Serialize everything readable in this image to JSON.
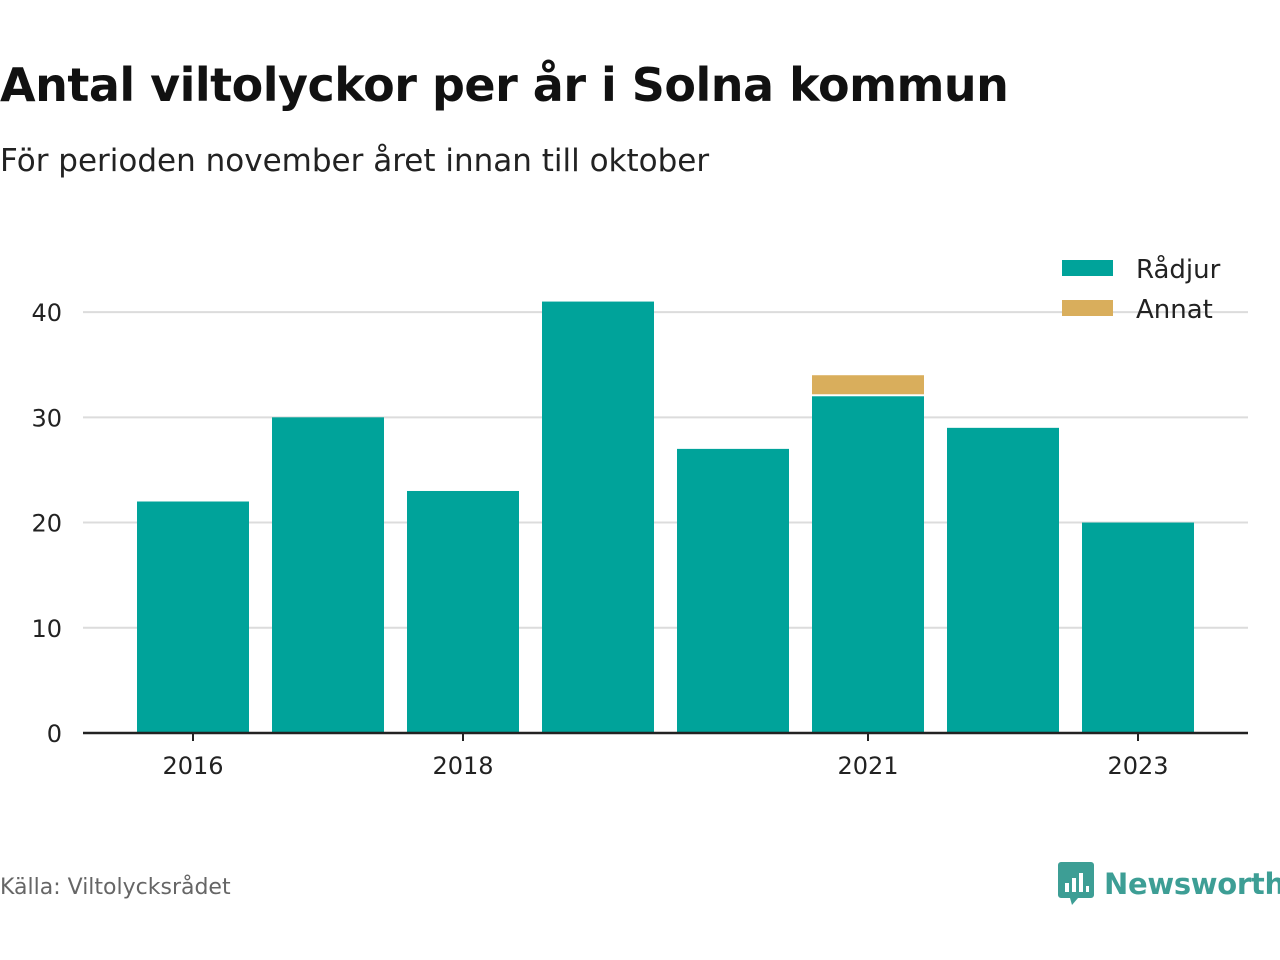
{
  "header": {
    "title": "Antal viltolyckor per år i Solna kommun",
    "subtitle": "För perioden november året innan till oktober"
  },
  "footer": {
    "source": "Källa: Viltolycksrådet",
    "brand": "Newsworthy",
    "brand_icon": "bar-chart-speech-bubble-icon"
  },
  "colors": {
    "radjur": "#00a39a",
    "annat": "#d9ae5c",
    "grid": "#dcdcdc",
    "axis": "#222222",
    "brand": "#3d9e95"
  },
  "chart_data": {
    "type": "bar",
    "stacked": true,
    "categories": [
      "2016",
      "2017",
      "2018",
      "2019",
      "2020",
      "2021",
      "2022",
      "2023"
    ],
    "x_tick_labels": [
      "2016",
      "2018",
      "2021",
      "2023"
    ],
    "series": [
      {
        "name": "Rådjur",
        "values": [
          22,
          30,
          23,
          41,
          27,
          32,
          29,
          20
        ]
      },
      {
        "name": "Annat",
        "values": [
          0,
          0,
          0,
          0,
          0,
          2,
          0,
          0
        ]
      }
    ],
    "yticks": [
      0,
      10,
      20,
      30,
      40
    ],
    "ylim": [
      0,
      44
    ],
    "grid": true,
    "legend_position": "top-right"
  }
}
